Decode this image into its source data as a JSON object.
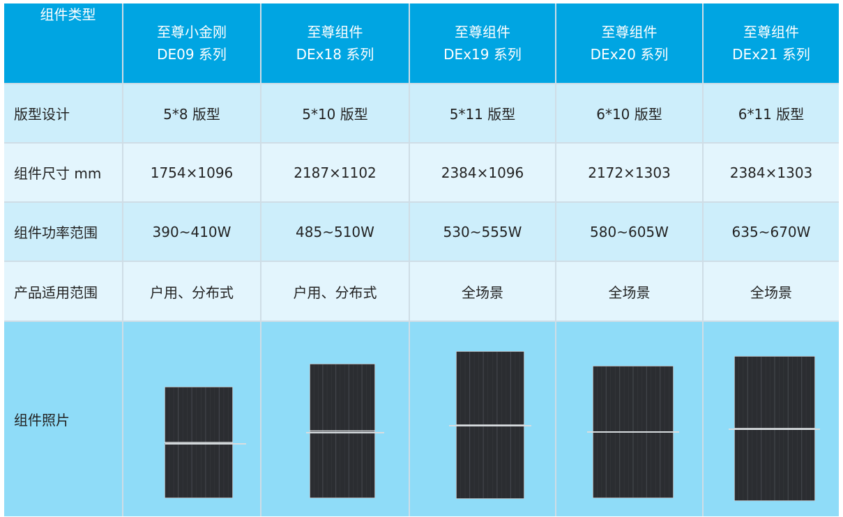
{
  "header": {
    "label": "组件类型",
    "columns": [
      {
        "line1": "至尊小金刚",
        "line2": "DE09 系列"
      },
      {
        "line1": "至尊组件",
        "line2": "DEx18 系列"
      },
      {
        "line1": "至尊组件",
        "line2": "DEx19 系列"
      },
      {
        "line1": "至尊组件",
        "line2": "DEx20 系列"
      },
      {
        "line1": "至尊组件",
        "line2": "DEx21 系列"
      }
    ]
  },
  "rows": {
    "layout": {
      "label": "版型设计",
      "values": [
        "5*8 版型",
        "5*10 版型",
        "5*11 版型",
        "6*10 版型",
        "6*11 版型"
      ]
    },
    "size": {
      "label": "组件尺寸 mm",
      "values": [
        "1754×1096",
        "2187×1102",
        "2384×1096",
        "2172×1303",
        "2384×1303"
      ]
    },
    "power": {
      "label": "组件功率范围",
      "values": [
        "390~410W",
        "485~510W",
        "530~555W",
        "580~605W",
        "635~670W"
      ]
    },
    "usage": {
      "label": "产品适用范围",
      "values": [
        "户用、分布式",
        "户用、分布式",
        "全场景",
        "全场景",
        "全场景"
      ]
    },
    "photo": {
      "label": "组件照片"
    }
  },
  "colors": {
    "header_bg": "#00a5e2",
    "row_light": "#cdeefb",
    "row_pale": "#e3f5fd",
    "photo_bg": "#8fdcf8",
    "panel": "#2b2d31"
  },
  "panels": [
    {
      "name": "de09-panel-image",
      "cols": 5
    },
    {
      "name": "dex18-panel-image",
      "cols": 5
    },
    {
      "name": "dex19-panel-image",
      "cols": 5
    },
    {
      "name": "dex20-panel-image",
      "cols": 6
    },
    {
      "name": "dex21-panel-image",
      "cols": 6
    }
  ]
}
